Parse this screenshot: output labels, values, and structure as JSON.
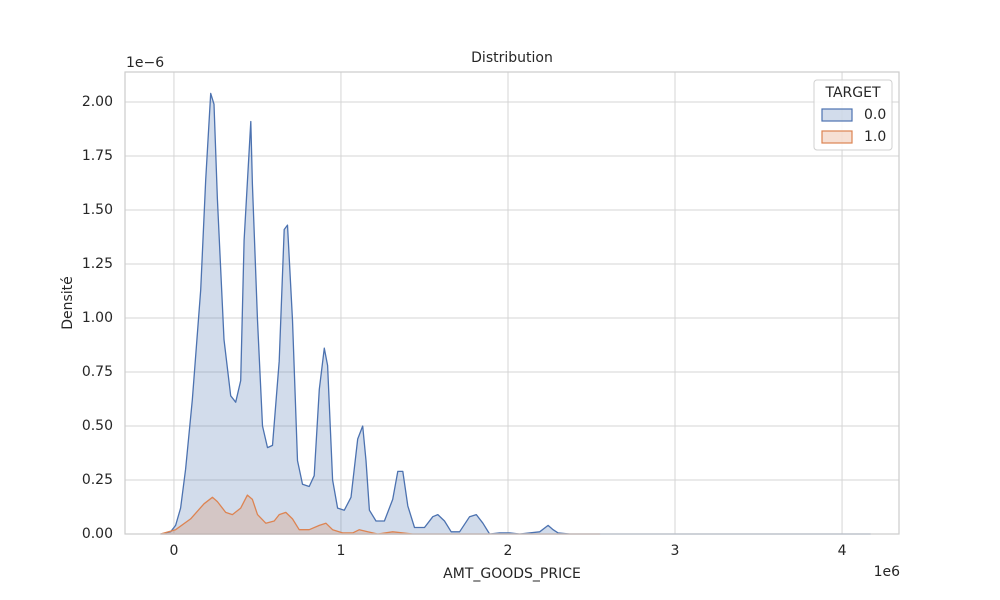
{
  "chart_data": {
    "type": "kde",
    "title": "Distribution",
    "x_label": "AMT_GOODS_PRICE",
    "y_label": "Densité",
    "x_offset_label": "1e6",
    "y_offset_label": "1e−6",
    "legend_title": "TARGET",
    "legend": "upper right",
    "grid": true,
    "xlim": [
      -0.293,
      4.341
    ],
    "ylim": [
      0,
      2.139
    ],
    "xticks": [
      0,
      1,
      2,
      3,
      4
    ],
    "yticks": [
      {
        "value": 0,
        "label": "0.00"
      },
      {
        "value": 0.25,
        "label": "0.25"
      },
      {
        "value": 0.5,
        "label": "0.50"
      },
      {
        "value": 0.75,
        "label": "0.75"
      },
      {
        "value": 1,
        "label": "1.00"
      },
      {
        "value": 1.25,
        "label": "1.25"
      },
      {
        "value": 1.5,
        "label": "1.50"
      },
      {
        "value": 1.75,
        "label": "1.75"
      },
      {
        "value": 2,
        "label": "2.00"
      }
    ],
    "series": [
      {
        "name": "0.0",
        "color": "#4c72b0",
        "x": [
          -0.08,
          -0.02,
          0.01,
          0.04,
          0.07,
          0.11,
          0.16,
          0.19,
          0.22,
          0.24,
          0.26,
          0.3,
          0.34,
          0.37,
          0.4,
          0.42,
          0.46,
          0.47,
          0.5,
          0.53,
          0.56,
          0.59,
          0.63,
          0.66,
          0.68,
          0.71,
          0.74,
          0.77,
          0.81,
          0.84,
          0.87,
          0.9,
          0.92,
          0.95,
          0.98,
          1.02,
          1.06,
          1.1,
          1.13,
          1.15,
          1.17,
          1.21,
          1.26,
          1.31,
          1.34,
          1.37,
          1.4,
          1.44,
          1.5,
          1.55,
          1.58,
          1.62,
          1.66,
          1.71,
          1.77,
          1.81,
          1.85,
          1.89,
          1.95,
          2.01,
          2.07,
          2.19,
          2.24,
          2.27,
          2.3,
          2.37,
          3.99,
          4.17
        ],
        "values": [
          0,
          0.01,
          0.04,
          0.12,
          0.3,
          0.62,
          1.13,
          1.64,
          2.04,
          1.99,
          1.55,
          0.9,
          0.64,
          0.61,
          0.71,
          1.36,
          1.91,
          1.62,
          0.99,
          0.5,
          0.4,
          0.41,
          0.8,
          1.41,
          1.43,
          0.99,
          0.34,
          0.23,
          0.22,
          0.27,
          0.67,
          0.86,
          0.78,
          0.25,
          0.12,
          0.11,
          0.17,
          0.44,
          0.5,
          0.34,
          0.11,
          0.06,
          0.06,
          0.16,
          0.29,
          0.29,
          0.13,
          0.03,
          0.03,
          0.08,
          0.09,
          0.06,
          0.01,
          0.01,
          0.08,
          0.09,
          0.05,
          0,
          0.005,
          0.005,
          0,
          0.01,
          0.04,
          0.02,
          0.005,
          0,
          0,
          0
        ]
      },
      {
        "name": "1.0",
        "color": "#dd8452",
        "x": [
          -0.08,
          0.01,
          0.1,
          0.18,
          0.23,
          0.26,
          0.31,
          0.35,
          0.4,
          0.44,
          0.47,
          0.5,
          0.55,
          0.6,
          0.63,
          0.67,
          0.71,
          0.75,
          0.81,
          0.87,
          0.91,
          0.95,
          1.01,
          1.07,
          1.11,
          1.16,
          1.22,
          1.31,
          1.37,
          1.43,
          2.55
        ],
        "values": [
          0,
          0.02,
          0.07,
          0.14,
          0.17,
          0.15,
          0.1,
          0.09,
          0.12,
          0.18,
          0.16,
          0.09,
          0.05,
          0.06,
          0.09,
          0.1,
          0.07,
          0.02,
          0.02,
          0.04,
          0.05,
          0.02,
          0.005,
          0.005,
          0.02,
          0.01,
          0,
          0.01,
          0.005,
          0,
          0
        ]
      }
    ]
  }
}
